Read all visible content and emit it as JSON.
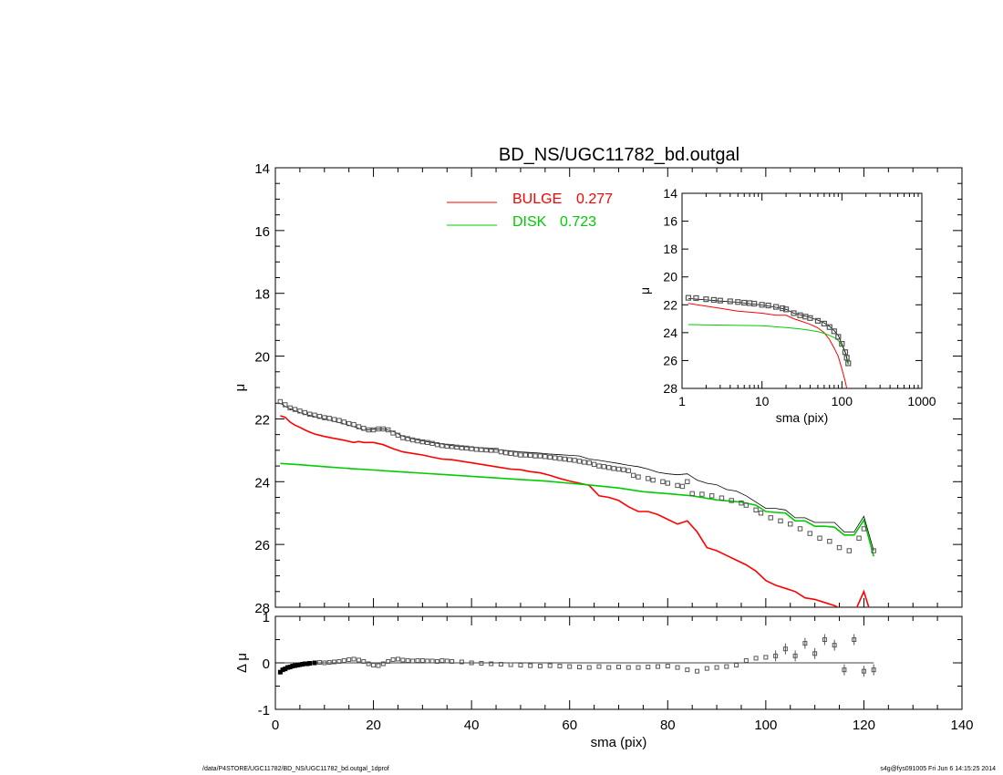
{
  "footer": {
    "left": "/data/P4STORE/UGC11782/BD_NS/UGC11782_bd.outgal_1dprof",
    "right": "s4g@fys091005  Fri Jun  6 14:15:25 2014"
  },
  "colors": {
    "bulge": "#ff0000",
    "disk": "#00cc00",
    "total": "#000000",
    "points": "#555555"
  },
  "chart_data": [
    {
      "id": "main",
      "type": "line",
      "title": "BD_NS/UGC11782_bd.outgal",
      "xlabel": "",
      "ylabel": "μ",
      "xlim": [
        0,
        140
      ],
      "ylim": [
        28,
        14
      ],
      "y_reversed": true,
      "yticks": [
        14,
        16,
        18,
        20,
        22,
        24,
        26,
        28
      ],
      "legend": [
        {
          "label": "BULGE",
          "value": "0.277",
          "color": "#ff0000"
        },
        {
          "label": "DISK",
          "value": "0.723",
          "color": "#00cc00"
        }
      ],
      "legend_position": "top-center",
      "observed": {
        "x": [
          1,
          2,
          3,
          4,
          5,
          6,
          7,
          8,
          9,
          10,
          11,
          12,
          13,
          14,
          15,
          16,
          17,
          18,
          19,
          20,
          21,
          22,
          23,
          24,
          25,
          26,
          27,
          28,
          29,
          30,
          31,
          32,
          33,
          34,
          35,
          36,
          37,
          38,
          39,
          40,
          41,
          42,
          43,
          44,
          45,
          46,
          47,
          48,
          49,
          50,
          51,
          52,
          53,
          54,
          55,
          56,
          57,
          58,
          59,
          60,
          61,
          62,
          63,
          64,
          65,
          66,
          67,
          68,
          69,
          70,
          71,
          72,
          73,
          74,
          76,
          77,
          79,
          80,
          82,
          83,
          84,
          85,
          87,
          89,
          91,
          93,
          95,
          96,
          98,
          99,
          101,
          103,
          105,
          107,
          109,
          111,
          113,
          115,
          117,
          119,
          120,
          122
        ],
        "y": [
          21.45,
          21.55,
          21.65,
          21.7,
          21.75,
          21.8,
          21.85,
          21.88,
          21.92,
          21.96,
          21.98,
          22.02,
          22.05,
          22.1,
          22.15,
          22.18,
          22.25,
          22.3,
          22.35,
          22.35,
          22.32,
          22.32,
          22.35,
          22.45,
          22.52,
          22.6,
          22.63,
          22.67,
          22.7,
          22.73,
          22.75,
          22.78,
          22.82,
          22.85,
          22.87,
          22.88,
          22.9,
          22.92,
          22.93,
          22.95,
          22.97,
          22.98,
          22.99,
          23.0,
          23.0,
          23.05,
          23.08,
          23.1,
          23.12,
          23.15,
          23.15,
          23.16,
          23.18,
          23.18,
          23.2,
          23.22,
          23.24,
          23.26,
          23.28,
          23.3,
          23.32,
          23.35,
          23.38,
          23.4,
          23.45,
          23.5,
          23.52,
          23.55,
          23.58,
          23.6,
          23.62,
          23.65,
          23.8,
          23.85,
          23.9,
          23.95,
          24.0,
          24.05,
          24.12,
          24.15,
          24.0,
          24.38,
          24.4,
          24.45,
          24.52,
          24.6,
          24.68,
          24.75,
          24.9,
          25.0,
          25.15,
          25.25,
          25.35,
          25.5,
          25.65,
          25.8,
          25.9,
          26.1,
          26.2,
          25.8,
          25.5,
          26.2
        ]
      },
      "total_model": {
        "x": [
          1,
          2,
          3,
          4,
          5,
          6,
          7,
          8,
          9,
          10,
          12,
          14,
          16,
          17,
          18,
          20,
          22,
          24,
          26,
          28,
          30,
          32,
          34,
          36,
          38,
          40,
          42,
          44,
          46,
          48,
          50,
          52,
          54,
          56,
          58,
          60,
          62,
          64,
          66,
          68,
          70,
          72,
          74,
          76,
          78,
          80,
          82,
          84,
          86,
          88,
          90,
          92,
          94,
          96,
          98,
          100,
          102,
          104,
          106,
          108,
          110,
          112,
          114,
          116,
          118,
          120,
          122
        ],
        "y": [
          21.5,
          21.6,
          21.68,
          21.74,
          21.8,
          21.85,
          21.89,
          21.93,
          21.97,
          22.0,
          22.08,
          22.16,
          22.25,
          22.3,
          22.36,
          22.33,
          22.32,
          22.4,
          22.55,
          22.63,
          22.7,
          22.75,
          22.8,
          22.85,
          22.88,
          22.9,
          22.93,
          22.96,
          22.99,
          23.02,
          23.05,
          23.07,
          23.09,
          23.12,
          23.14,
          23.16,
          23.18,
          23.28,
          23.32,
          23.37,
          23.42,
          23.48,
          23.52,
          23.6,
          23.7,
          23.75,
          23.78,
          23.75,
          23.95,
          24.05,
          24.1,
          24.25,
          24.3,
          24.45,
          24.65,
          24.85,
          24.85,
          24.9,
          25.15,
          25.15,
          25.3,
          25.3,
          25.3,
          25.6,
          25.6,
          25.1,
          26.2
        ]
      },
      "bulge": {
        "x": [
          1,
          2,
          3,
          4,
          5,
          6,
          7,
          8,
          9,
          10,
          12,
          14,
          16,
          17,
          18,
          20,
          22,
          24,
          26,
          28,
          30,
          32,
          34,
          36,
          38,
          40,
          42,
          44,
          46,
          48,
          50,
          52,
          54,
          56,
          58,
          60,
          62,
          64,
          66,
          68,
          70,
          72,
          74,
          76,
          78,
          80,
          82,
          84,
          86,
          88,
          90,
          92,
          94,
          96,
          98,
          100,
          102,
          104,
          106,
          108,
          110,
          112,
          114,
          116,
          118,
          120,
          122
        ],
        "y": [
          21.9,
          21.95,
          22.1,
          22.2,
          22.27,
          22.35,
          22.42,
          22.48,
          22.52,
          22.56,
          22.62,
          22.68,
          22.75,
          22.72,
          22.75,
          22.75,
          22.82,
          22.95,
          23.05,
          23.1,
          23.15,
          23.22,
          23.28,
          23.3,
          23.35,
          23.4,
          23.45,
          23.5,
          23.55,
          23.6,
          23.62,
          23.68,
          23.72,
          23.8,
          23.9,
          23.98,
          24.05,
          24.12,
          24.45,
          24.5,
          24.6,
          24.8,
          24.95,
          24.95,
          25.05,
          25.2,
          25.35,
          25.25,
          25.6,
          26.1,
          26.2,
          26.35,
          26.5,
          26.65,
          26.85,
          27.15,
          27.3,
          27.4,
          27.5,
          27.7,
          27.75,
          27.85,
          27.95,
          28.1,
          28.2,
          27.5,
          28.5
        ]
      },
      "disk": {
        "x": [
          1,
          5,
          10,
          15,
          20,
          25,
          30,
          35,
          40,
          45,
          50,
          55,
          60,
          65,
          70,
          75,
          80,
          85,
          90,
          95,
          98,
          100,
          102,
          104,
          106,
          108,
          110,
          112,
          114,
          116,
          118,
          120,
          122
        ],
        "y": [
          23.42,
          23.46,
          23.52,
          23.58,
          23.63,
          23.68,
          23.73,
          23.78,
          23.83,
          23.88,
          23.93,
          23.98,
          24.05,
          24.12,
          24.2,
          24.32,
          24.38,
          24.45,
          24.58,
          24.65,
          24.75,
          24.95,
          24.98,
          25.0,
          25.25,
          25.25,
          25.42,
          25.42,
          25.45,
          25.7,
          25.7,
          25.22,
          26.38
        ]
      }
    },
    {
      "id": "inset",
      "type": "line",
      "title": "",
      "xlabel": "sma (pix)",
      "ylabel": "μ",
      "x_scale": "log",
      "xlim": [
        1,
        1000
      ],
      "xticks": [
        1,
        10,
        100,
        1000
      ],
      "ylim": [
        28,
        14
      ],
      "y_reversed": true,
      "yticks": [
        14,
        16,
        18,
        20,
        22,
        24,
        26,
        28
      ],
      "observed": {
        "x": [
          1.2,
          1.5,
          2,
          2.5,
          3,
          4,
          5,
          6,
          7,
          8,
          10,
          12,
          15,
          18,
          20,
          25,
          30,
          35,
          40,
          50,
          60,
          70,
          80,
          90,
          100,
          110,
          115,
          120
        ],
        "y": [
          21.5,
          21.52,
          21.6,
          21.65,
          21.7,
          21.75,
          21.8,
          21.85,
          21.88,
          21.92,
          22.0,
          22.05,
          22.15,
          22.25,
          22.33,
          22.6,
          22.75,
          22.85,
          22.95,
          23.15,
          23.35,
          23.6,
          23.9,
          24.3,
          24.8,
          25.4,
          25.8,
          26.2
        ]
      },
      "total_model": {
        "x": [
          1.2,
          2,
          3,
          5,
          8,
          10,
          15,
          20,
          25,
          30,
          40,
          50,
          60,
          70,
          80,
          90,
          100,
          110,
          120
        ],
        "y": [
          21.55,
          21.65,
          21.73,
          21.82,
          21.95,
          22.02,
          22.18,
          22.33,
          22.6,
          22.72,
          22.92,
          23.1,
          23.3,
          23.55,
          23.85,
          24.2,
          24.8,
          25.4,
          26.2
        ]
      },
      "bulge": {
        "x": [
          1.2,
          2,
          3,
          5,
          8,
          10,
          15,
          20,
          25,
          30,
          40,
          50,
          60,
          70,
          80,
          90,
          100,
          110,
          120
        ],
        "y": [
          21.9,
          22.1,
          22.25,
          22.45,
          22.55,
          22.6,
          22.75,
          22.75,
          23.0,
          23.15,
          23.4,
          23.65,
          24.0,
          24.5,
          25.1,
          25.7,
          26.6,
          27.5,
          28.5
        ]
      },
      "disk": {
        "x": [
          1.2,
          10,
          20,
          30,
          40,
          50,
          60,
          70,
          80,
          90,
          100,
          110,
          120
        ],
        "y": [
          23.42,
          23.5,
          23.63,
          23.73,
          23.83,
          23.93,
          24.05,
          24.2,
          24.35,
          24.55,
          24.9,
          25.4,
          26.3
        ]
      }
    },
    {
      "id": "residual",
      "type": "scatter",
      "title": "",
      "xlabel": "sma (pix)",
      "ylabel": "Δ μ",
      "xlim": [
        0,
        140
      ],
      "xticks": [
        0,
        20,
        40,
        60,
        80,
        100,
        120,
        140
      ],
      "ylim": [
        -1,
        1
      ],
      "yticks": [
        1,
        0,
        -1
      ],
      "x": [
        1,
        1.5,
        2,
        2.5,
        3,
        3.5,
        4,
        4.5,
        5,
        5.5,
        6,
        6.5,
        7,
        8,
        9,
        10,
        11,
        12,
        13,
        14,
        15,
        16,
        17,
        18,
        19,
        20,
        21,
        22,
        23,
        24,
        25,
        26,
        27,
        28,
        29,
        30,
        31,
        32,
        33,
        34,
        35,
        36,
        38,
        40,
        42,
        44,
        46,
        48,
        50,
        52,
        54,
        56,
        58,
        60,
        62,
        64,
        66,
        68,
        70,
        72,
        74,
        76,
        78,
        80,
        82,
        84,
        86,
        88,
        90,
        92,
        94,
        96,
        98,
        100,
        102,
        104,
        106,
        108,
        110,
        112,
        114,
        116,
        118,
        120,
        122
      ],
      "y": [
        -0.2,
        -0.15,
        -0.13,
        -0.1,
        -0.09,
        -0.07,
        -0.06,
        -0.05,
        -0.04,
        -0.03,
        -0.02,
        -0.02,
        -0.01,
        0.0,
        0.01,
        0.0,
        0.01,
        0.02,
        0.03,
        0.05,
        0.07,
        0.08,
        0.06,
        0.03,
        -0.02,
        -0.05,
        -0.06,
        -0.02,
        0.03,
        0.07,
        0.08,
        0.06,
        0.05,
        0.04,
        0.05,
        0.05,
        0.04,
        0.04,
        0.03,
        0.05,
        0.04,
        0.03,
        0.02,
        0.0,
        -0.01,
        -0.02,
        -0.03,
        -0.04,
        -0.05,
        -0.06,
        -0.07,
        -0.06,
        -0.07,
        -0.08,
        -0.09,
        -0.1,
        -0.08,
        -0.1,
        -0.09,
        -0.1,
        -0.1,
        -0.09,
        -0.08,
        -0.07,
        -0.1,
        -0.15,
        -0.18,
        -0.12,
        -0.1,
        -0.08,
        -0.05,
        0.05,
        0.1,
        0.12,
        0.15,
        0.3,
        0.15,
        0.42,
        0.2,
        0.5,
        0.38,
        -0.15,
        0.5,
        -0.18,
        -0.15
      ]
    }
  ]
}
